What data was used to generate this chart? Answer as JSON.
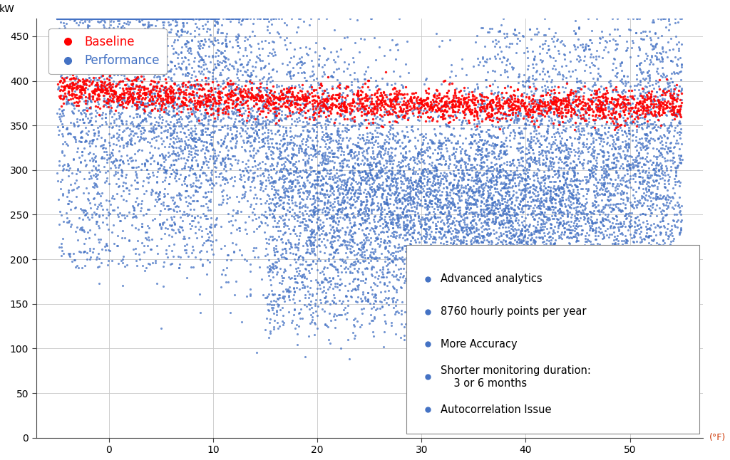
{
  "title": "",
  "ylabel": "kW",
  "xlabel_right": "(°F)",
  "xlim": [
    -7,
    57
  ],
  "ylim": [
    0,
    470
  ],
  "yticks": [
    0,
    50,
    100,
    150,
    200,
    250,
    300,
    350,
    400,
    450
  ],
  "xticks": [
    0,
    10,
    20,
    30,
    40,
    50
  ],
  "baseline_color": "#FF0000",
  "performance_color": "#4472C4",
  "legend_labels": [
    "Baseline",
    "Performance"
  ],
  "bullet_points": [
    "Advanced analytics",
    "8760 hourly points per year",
    "More Accuracy",
    "Shorter monitoring duration:\n  3 or 6 months",
    "Autocorrelation Issue"
  ],
  "n_baseline": 2500,
  "n_performance": 8760,
  "seed": 42,
  "background_color": "#FFFFFF",
  "grid_color": "#C8C8C8"
}
